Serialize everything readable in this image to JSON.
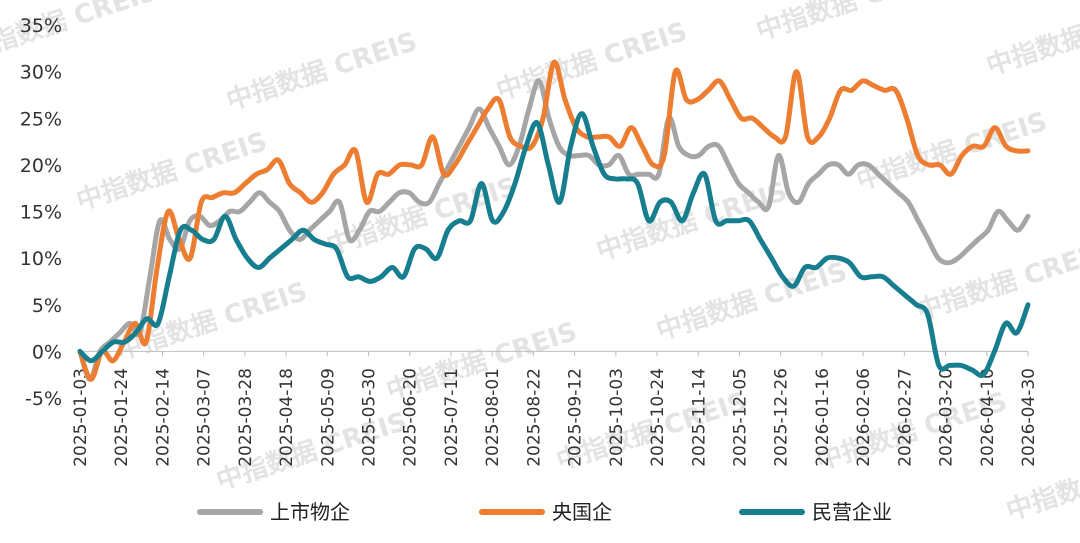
{
  "watermark_text": "中指数据 CREIS",
  "chart_data": {
    "type": "line",
    "ylim": [
      -5,
      35
    ],
    "yticks": [
      "-5%",
      "0%",
      "5%",
      "10%",
      "15%",
      "20%",
      "25%",
      "30%",
      "35%"
    ],
    "x_tick_labels": [
      "2025-01-03",
      "2025-01-24",
      "2025-02-14",
      "2025-03-07",
      "2025-03-28",
      "2025-04-18",
      "2025-05-09",
      "2025-05-30",
      "2025-06-20",
      "2025-07-11",
      "2025-08-01",
      "2025-08-22",
      "2025-09-12",
      "2025-10-03",
      "2025-10-24",
      "2025-11-14",
      "2025-12-05",
      "2025-12-26",
      "2026-01-16",
      "2026-02-06",
      "2026-02-27",
      "2026-03-20",
      "2026-04-10",
      "2026-04-30"
    ],
    "grid": false,
    "legend_position": "bottom",
    "series": [
      {
        "name": "上市物企",
        "color": "#a6a6a6",
        "values": [
          0,
          -3,
          0,
          1,
          2,
          3,
          2,
          8,
          14,
          12,
          11,
          14,
          14.5,
          13.5,
          14,
          15,
          15,
          16,
          17,
          16,
          15,
          13,
          12,
          13,
          14,
          15,
          16,
          12,
          13,
          15,
          15,
          16,
          17,
          17,
          16,
          16,
          18,
          20,
          22,
          24,
          26,
          24,
          22,
          20,
          22,
          26,
          29,
          25,
          22,
          21,
          21,
          21,
          20,
          20,
          21,
          19,
          19,
          19,
          19,
          25,
          22,
          21,
          21,
          22,
          22,
          20,
          18,
          17,
          16,
          15.5,
          21,
          17,
          16,
          18,
          19,
          20,
          20,
          19,
          20,
          20,
          19,
          18,
          17,
          16,
          14,
          12,
          10,
          9.5,
          10,
          11,
          12,
          13,
          15,
          14,
          13,
          14.5
        ]
      },
      {
        "name": "央国企",
        "color": "#ed7d31",
        "values": [
          0,
          -3,
          0,
          -1,
          1,
          3,
          1,
          9,
          15,
          12,
          10,
          16,
          16.5,
          17,
          17,
          18,
          19,
          19.5,
          20.5,
          18,
          17,
          16,
          17,
          19,
          20,
          21.5,
          16,
          19,
          19,
          20,
          20,
          20,
          23,
          19,
          20,
          22,
          24,
          26,
          27,
          23,
          22,
          22,
          25,
          31,
          27,
          24,
          23,
          23,
          23,
          22,
          24,
          22,
          20,
          21,
          30,
          27,
          27,
          28,
          29,
          27,
          25,
          25,
          24,
          23,
          23,
          30,
          23,
          23,
          25,
          28,
          28,
          29,
          28.5,
          28,
          28,
          25,
          21,
          20,
          20,
          19,
          21,
          22,
          22,
          24,
          22,
          21.5,
          21.5
        ]
      },
      {
        "name": "民营企业",
        "color": "#167e8e",
        "values": [
          0,
          -1,
          0,
          1,
          1,
          2,
          3.5,
          3,
          8,
          13,
          13,
          12,
          12,
          14.5,
          12,
          10,
          9,
          10,
          11,
          12,
          13,
          12,
          11.5,
          11,
          8,
          8,
          7.5,
          8,
          9,
          8,
          11,
          11,
          10,
          13,
          14,
          14,
          18,
          14,
          15,
          18,
          22,
          24.5,
          20,
          16,
          22,
          25.5,
          22,
          19,
          18.5,
          18.5,
          18,
          14,
          16,
          16,
          14,
          17,
          19,
          14,
          14,
          14,
          14,
          12,
          10,
          8,
          7,
          9,
          9,
          10,
          10,
          9.5,
          8,
          8,
          8,
          7,
          6,
          5,
          4,
          -1.5,
          -1.5,
          -1.5,
          -2,
          -2.5,
          0,
          3,
          2,
          5
        ]
      }
    ]
  }
}
